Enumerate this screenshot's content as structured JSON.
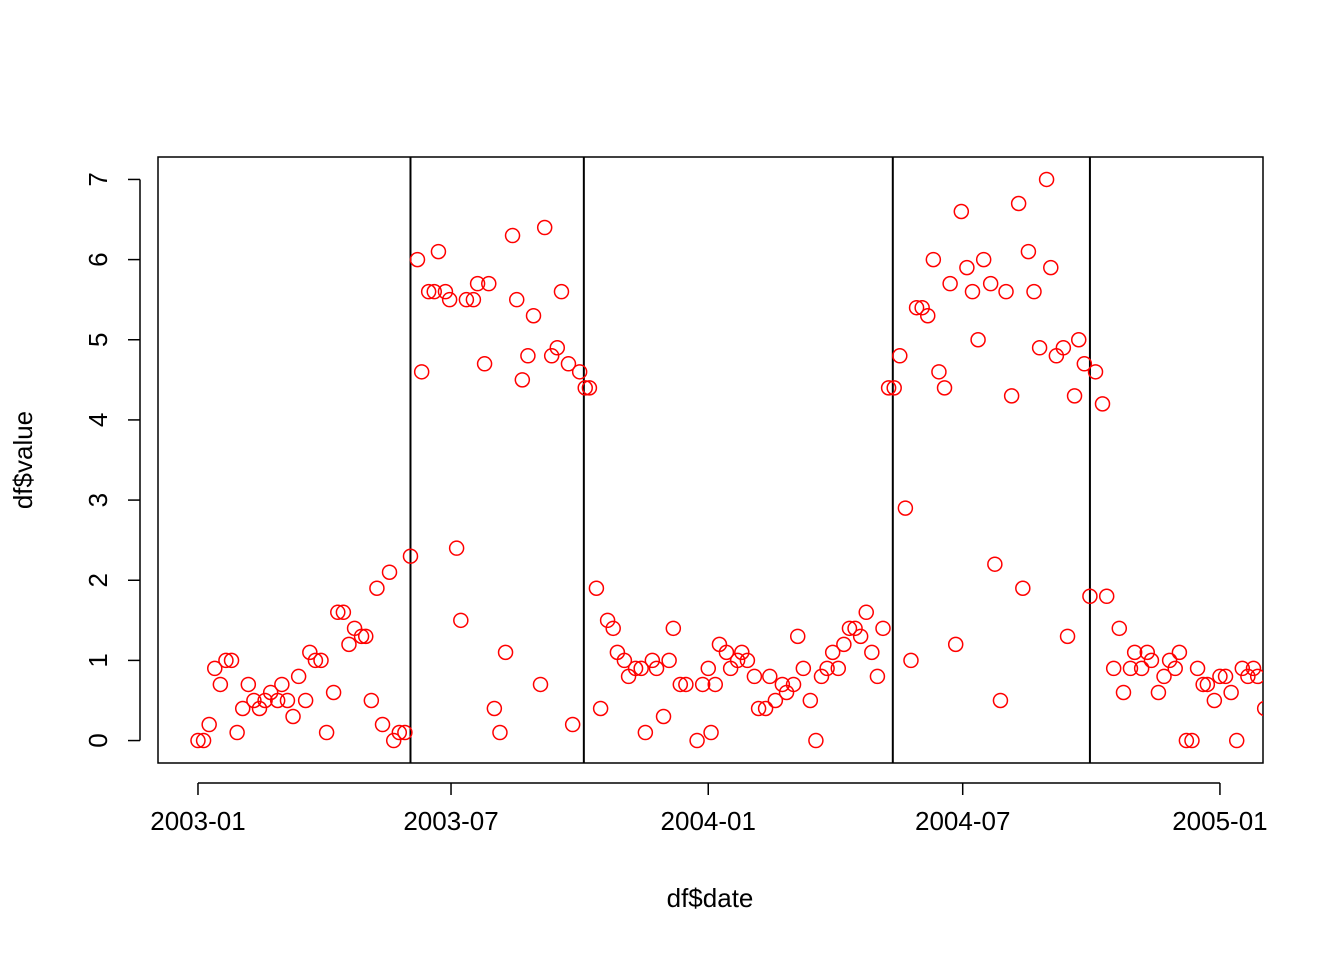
{
  "chart_data": {
    "type": "scatter",
    "x_label": "df$date",
    "y_label": "df$value",
    "x": [
      0,
      4,
      8,
      12,
      16,
      20,
      24,
      28,
      32,
      36,
      40,
      44,
      48,
      52,
      57,
      60,
      64,
      68,
      72,
      77,
      80,
      84,
      88,
      92,
      97,
      100,
      104,
      108,
      112,
      117,
      120,
      124,
      128,
      132,
      137,
      140,
      144,
      148,
      152,
      157,
      160,
      165,
      169,
      172,
      177,
      180,
      185,
      188,
      192,
      197,
      200,
      205,
      208,
      212,
      216,
      220,
      225,
      228,
      232,
      236,
      240,
      245,
      248,
      253,
      257,
      260,
      265,
      268,
      273,
      277,
      280,
      285,
      288,
      293,
      297,
      300,
      305,
      308,
      313,
      317,
      320,
      325,
      328,
      333,
      337,
      340,
      345,
      349,
      357,
      361,
      365,
      367,
      370,
      373,
      378,
      381,
      386,
      389,
      393,
      398,
      401,
      406,
      409,
      413,
      418,
      421,
      426,
      429,
      433,
      438,
      442,
      446,
      450,
      454,
      458,
      462,
      466,
      470,
      474,
      478,
      482,
      486,
      490,
      494,
      498,
      502,
      506,
      510,
      514,
      518,
      522,
      526,
      530,
      534,
      538,
      542,
      546,
      550,
      554,
      558,
      562,
      567,
      570,
      574,
      578,
      582,
      587,
      590,
      594,
      598,
      602,
      607,
      610,
      614,
      619,
      622,
      627,
      630,
      634,
      638,
      642,
      647,
      650,
      655,
      659,
      662,
      667,
      670,
      675,
      679,
      682,
      687,
      691,
      695,
      699,
      702,
      707,
      711,
      715,
      719,
      722,
      727,
      731,
      735,
      739,
      743,
      747,
      751,
      755,
      758,
      763
    ],
    "values": [
      0,
      0,
      0.2,
      0.9,
      0.7,
      1,
      1,
      0.1,
      0.4,
      0.7,
      0.5,
      0.4,
      0.5,
      0.6,
      0.5,
      0.7,
      0.5,
      0.3,
      0.8,
      0.5,
      1.1,
      1,
      1,
      0.1,
      0.6,
      1.6,
      1.6,
      1.2,
      1.4,
      1.3,
      1.3,
      0.5,
      1.9,
      0.2,
      2.1,
      0,
      0.1,
      0.1,
      2.3,
      6,
      4.6,
      5.6,
      5.6,
      6.1,
      5.6,
      5.5,
      2.4,
      1.5,
      5.5,
      5.5,
      5.7,
      4.7,
      5.7,
      0.4,
      0.1,
      1.1,
      6.3,
      5.5,
      4.5,
      4.8,
      5.3,
      0.7,
      6.4,
      4.8,
      4.9,
      5.6,
      4.7,
      0.2,
      4.6,
      4.4,
      4.4,
      1.9,
      0.4,
      1.5,
      1.4,
      1.1,
      1,
      0.8,
      0.9,
      0.9,
      0.1,
      1,
      0.9,
      0.3,
      1,
      1.4,
      0.7,
      0.7,
      0,
      0.7,
      0.9,
      0.1,
      0.7,
      1.2,
      1.1,
      0.9,
      1,
      1.1,
      1,
      0.8,
      0.4,
      0.4,
      0.8,
      0.5,
      0.7,
      0.6,
      0.7,
      1.3,
      0.9,
      0.5,
      0,
      0.8,
      0.9,
      1.1,
      0.9,
      1.2,
      1.4,
      1.4,
      1.3,
      1.6,
      1.1,
      0.8,
      1.4,
      4.4,
      4.4,
      4.8,
      2.9,
      1,
      5.4,
      5.4,
      5.3,
      6,
      4.6,
      4.4,
      5.7,
      1.2,
      6.6,
      5.9,
      5.6,
      5,
      6,
      5.7,
      2.2,
      0.5,
      5.6,
      4.3,
      6.7,
      1.9,
      6.1,
      5.6,
      4.9,
      7,
      5.9,
      4.8,
      4.9,
      1.3,
      4.3,
      5,
      4.7,
      1.8,
      4.6,
      4.2,
      1.8,
      0.9,
      1.4,
      0.6,
      0.9,
      1.1,
      0.9,
      1.1,
      1,
      0.6,
      0.8,
      1,
      0.9,
      1.1,
      0,
      0,
      0.9,
      0.7,
      0.7,
      0.5,
      0.8,
      0.8,
      0.6,
      0,
      0.9,
      0.8,
      0.9,
      0.8,
      0.4
    ],
    "color": "#ff0000",
    "vlines": [
      152,
      276,
      497,
      638
    ],
    "xlim": [
      -28.6,
      761.8
    ],
    "xticks": [
      {
        "value": 0,
        "label": "2003-01"
      },
      {
        "value": 181,
        "label": "2003-07"
      },
      {
        "value": 365,
        "label": "2004-01"
      },
      {
        "value": 547,
        "label": "2004-07"
      },
      {
        "value": 731,
        "label": "2005-01"
      }
    ],
    "ylim": [
      -0.28,
      7.28
    ],
    "yticks": [
      0,
      1,
      2,
      3,
      4,
      5,
      6,
      7
    ]
  }
}
